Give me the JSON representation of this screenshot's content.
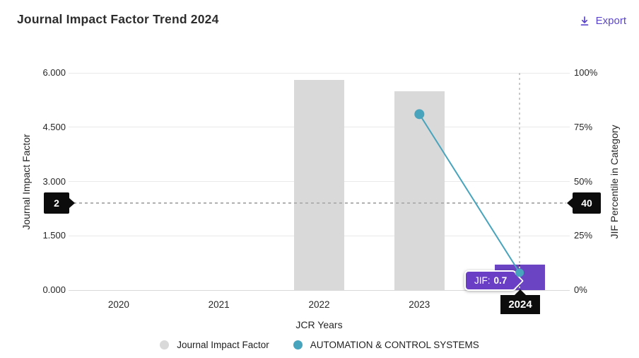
{
  "header": {
    "title": "Journal Impact Factor Trend 2024",
    "export_label": "Export"
  },
  "colors": {
    "accent": "#5b45c9",
    "bar": "#d9d9d9",
    "bar_highlight": "#6b44c4",
    "line": "#47a4bc",
    "grid": "#e9e9e9",
    "axis_line": "#d9d9d9",
    "threshold_dash": "#b0b0b0",
    "marker_bg": "#0c0c0c",
    "tooltip_bg": "#6a3fc6"
  },
  "chart_data": {
    "type": "bar",
    "title": "Journal Impact Factor Trend 2024",
    "categories": [
      "2020",
      "2021",
      "2022",
      "2023",
      "2024"
    ],
    "series": [
      {
        "name": "Journal Impact Factor",
        "type": "bar",
        "axis": "left",
        "color": "#d9d9d9",
        "values": [
          null,
          null,
          5.8,
          5.5,
          0.7
        ]
      },
      {
        "name": "AUTOMATION & CONTROL SYSTEMS",
        "type": "line",
        "axis": "right",
        "color": "#47a4bc",
        "values": [
          null,
          null,
          null,
          81,
          8
        ]
      }
    ],
    "xlabel": "JCR Years",
    "ylabel_left": "Journal Impact Factor",
    "ylabel_right": "JIF Percentile in Category",
    "yticks_left": [
      "0.000",
      "1.500",
      "3.000",
      "4.500",
      "6.000"
    ],
    "yticks_right": [
      "0%",
      "25%",
      "50%",
      "75%",
      "100%"
    ],
    "ylim_left": [
      0,
      6
    ],
    "ylim_right": [
      0,
      100
    ],
    "grid": "horizontal",
    "legend_position": "bottom",
    "reference_lines": {
      "jif_value": "2",
      "percentile_value": "40"
    },
    "highlight": {
      "year": "2024",
      "bar_color": "#6b44c4",
      "tooltip_prefix": "JIF:",
      "tooltip_value": "0.7"
    }
  },
  "legend": {
    "items": [
      {
        "label": "Journal Impact Factor",
        "color": "#d9d9d9"
      },
      {
        "label": "AUTOMATION & CONTROL SYSTEMS",
        "color": "#47a4bc"
      }
    ]
  }
}
